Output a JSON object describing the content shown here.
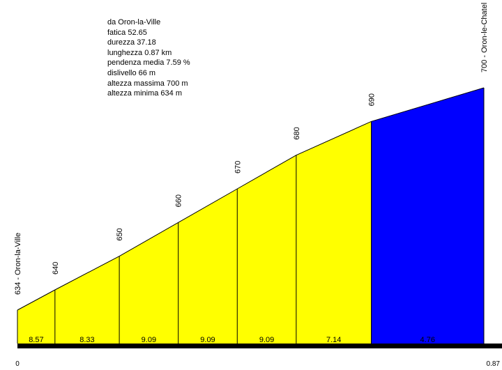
{
  "info": {
    "from": "da Oron-la-Ville",
    "fatica": "fatica 52.65",
    "durezza": "durezza 37.18",
    "lunghezza": "lunghezza 0.87 km",
    "pendenza": "pendenza media 7.59 %",
    "dislivello": "dislivello 66 m",
    "altezza_max": "altezza massima 700 m",
    "altezza_min": "altezza minima 634 m"
  },
  "colors": {
    "climb": "#ffff00",
    "last_segment": "#0000ff",
    "baseline": "#000000"
  },
  "chart_data": {
    "type": "area",
    "title": "",
    "xlabel": "",
    "ylabel": "",
    "start_label": "634 - Oron-la-Ville",
    "end_label": "700 - Oron-le-Chatel",
    "x_tick_labels": [
      "0",
      "0.87"
    ],
    "xlim": [
      0,
      0.87
    ],
    "ylim": [
      634,
      700
    ],
    "points": [
      {
        "km": 0.0,
        "alt": 634,
        "label": "634 - Oron-la-Ville"
      },
      {
        "km": 0.07,
        "alt": 640,
        "label": "640"
      },
      {
        "km": 0.19,
        "alt": 650,
        "label": "650"
      },
      {
        "km": 0.3,
        "alt": 660,
        "label": "660"
      },
      {
        "km": 0.41,
        "alt": 670,
        "label": "670"
      },
      {
        "km": 0.52,
        "alt": 680,
        "label": "680"
      },
      {
        "km": 0.66,
        "alt": 690,
        "label": "690"
      },
      {
        "km": 0.87,
        "alt": 700,
        "label": "700 - Oron-le-Chatel"
      }
    ],
    "segments": [
      {
        "grade": "8.57",
        "color": "#ffff00"
      },
      {
        "grade": "8.33",
        "color": "#ffff00"
      },
      {
        "grade": "9.09",
        "color": "#ffff00"
      },
      {
        "grade": "9.09",
        "color": "#ffff00"
      },
      {
        "grade": "9.09",
        "color": "#ffff00"
      },
      {
        "grade": "7.14",
        "color": "#ffff00"
      },
      {
        "grade": "4.76",
        "color": "#0000ff"
      }
    ]
  }
}
